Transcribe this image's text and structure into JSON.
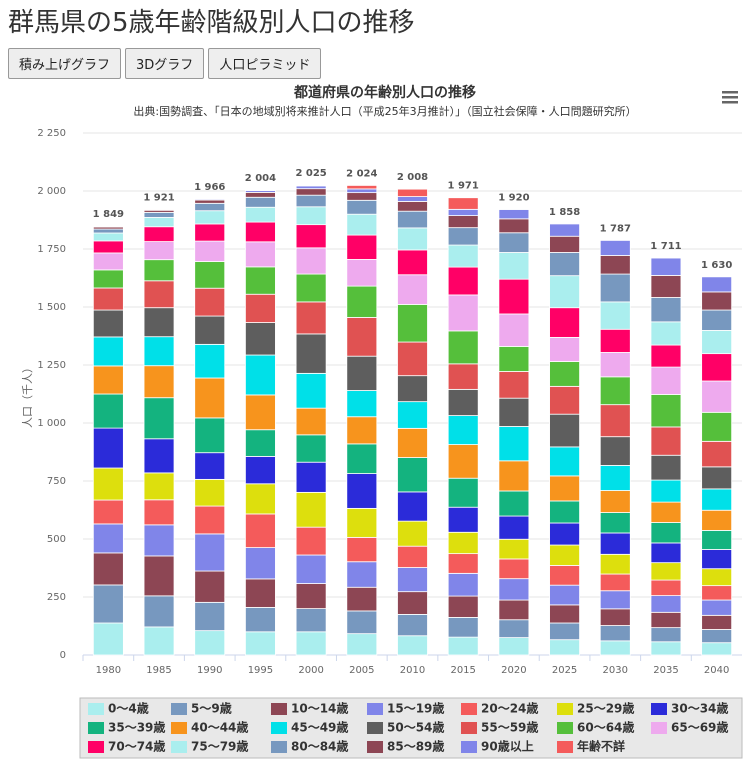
{
  "page_title": "群馬県の5歳年齢階級別人口の推移",
  "buttons": [
    "積み上げグラフ",
    "3Dグラフ",
    "人口ピラミッド"
  ],
  "chart_data": {
    "type": "stacked_bar",
    "title": "都道府県の年齢別人口の推移",
    "subtitle": "出典:国勢調査、「日本の地域別将来推計人口（平成25年3月推計）」（国立社会保障・人口問題研究所）",
    "y_label": "人口（千人）",
    "categories": [
      "1980",
      "1985",
      "1990",
      "1995",
      "2000",
      "2005",
      "2010",
      "2015",
      "2020",
      "2025",
      "2030",
      "2035",
      "2040"
    ],
    "ylim": [
      0,
      2250
    ],
    "yticks": [
      0,
      250,
      500,
      750,
      {
        "value": 1000,
        "label": "1 000"
      },
      {
        "value": 1250,
        "label": "1 250"
      },
      {
        "value": 1500,
        "label": "1 500"
      },
      {
        "value": 1750,
        "label": "1 750"
      },
      {
        "value": 2000,
        "label": "2 000"
      },
      {
        "value": 2250,
        "label": "2 250"
      }
    ],
    "totals": [
      {
        "value": 1849,
        "label": "1 849"
      },
      {
        "value": 1921,
        "label": "1 921"
      },
      {
        "value": 1966,
        "label": "1 966"
      },
      {
        "value": 2004,
        "label": "2 004"
      },
      {
        "value": 2025,
        "label": "2 025"
      },
      {
        "value": 2024,
        "label": "2 024"
      },
      {
        "value": 2008,
        "label": "2 008"
      },
      {
        "value": 1971,
        "label": "1 971"
      },
      {
        "value": 1920,
        "label": "1 920"
      },
      {
        "value": 1858,
        "label": "1 858"
      },
      {
        "value": 1787,
        "label": "1 787"
      },
      {
        "value": 1711,
        "label": "1 711"
      },
      {
        "value": 1630,
        "label": "1 630"
      }
    ],
    "series": [
      {
        "name": "0～4歳",
        "color": "#aaeeee",
        "values": [
          138,
          121,
          105,
          100,
          100,
          92,
          83,
          77,
          75,
          66,
          61,
          57,
          53
        ]
      },
      {
        "name": "5～9歳",
        "color": "#7798bf",
        "values": [
          164,
          134,
          122,
          105,
          100,
          98,
          92,
          85,
          77,
          72,
          66,
          61,
          57
        ]
      },
      {
        "name": "10～14歳",
        "color": "#8d4654",
        "values": [
          138,
          172,
          135,
          123,
          108,
          102,
          98,
          92,
          85,
          78,
          72,
          66,
          61
        ]
      },
      {
        "name": "15～19歳",
        "color": "#8085e9",
        "values": [
          125,
          134,
          160,
          135,
          123,
          110,
          104,
          98,
          92,
          85,
          78,
          72,
          66
        ]
      },
      {
        "name": "20～24歳",
        "color": "#f45b5b",
        "values": [
          103,
          108,
          120,
          145,
          120,
          105,
          92,
          85,
          85,
          85,
          72,
          67,
          62
        ]
      },
      {
        "name": "25～29歳",
        "color": "#dddf0d",
        "values": [
          138,
          116,
          115,
          130,
          150,
          125,
          108,
          92,
          85,
          88,
          85,
          75,
          73
        ]
      },
      {
        "name": "30～34歳",
        "color": "#2b2bd9",
        "values": [
          172,
          147,
          115,
          118,
          130,
          150,
          126,
          108,
          100,
          95,
          92,
          85,
          83
        ]
      },
      {
        "name": "35～39歳",
        "color": "#14b37f",
        "values": [
          147,
          177,
          150,
          115,
          118,
          128,
          148,
          125,
          108,
          95,
          88,
          88,
          82
        ]
      },
      {
        "name": "40～44歳",
        "color": "#f7941d",
        "values": [
          121,
          138,
          172,
          150,
          115,
          117,
          126,
          145,
          130,
          108,
          95,
          88,
          87
        ]
      },
      {
        "name": "45～49歳",
        "color": "#00e0e8",
        "values": [
          125,
          125,
          145,
          172,
          150,
          113,
          115,
          125,
          148,
          125,
          108,
          95,
          92
        ]
      },
      {
        "name": "50～54歳",
        "color": "#5e5e5e",
        "values": [
          116,
          125,
          122,
          140,
          170,
          148,
          112,
          113,
          122,
          141,
          124,
          107,
          95
        ]
      },
      {
        "name": "55～59歳",
        "color": "#e05252",
        "values": [
          95,
          116,
          120,
          122,
          138,
          167,
          145,
          110,
          115,
          120,
          138,
          122,
          110
        ]
      },
      {
        "name": "60～64歳",
        "color": "#55bf3b",
        "values": [
          78,
          91,
          115,
          118,
          120,
          135,
          162,
          142,
          108,
          107,
          120,
          140,
          125
        ]
      },
      {
        "name": "65～69歳",
        "color": "#eeaaee",
        "values": [
          73,
          78,
          88,
          108,
          113,
          115,
          128,
          155,
          140,
          104,
          105,
          118,
          135
        ]
      },
      {
        "name": "70～74歳",
        "color": "#ff0066",
        "values": [
          52,
          64,
          74,
          85,
          100,
          105,
          107,
          120,
          150,
          128,
          100,
          95,
          118
        ]
      },
      {
        "name": "75～79歳",
        "color": "#aaeeee",
        "values": [
          34,
          40,
          57,
          64,
          77,
          90,
          95,
          95,
          115,
          138,
          118,
          100,
          100
        ]
      },
      {
        "name": "80～84歳",
        "color": "#7798bf",
        "values": [
          17,
          22,
          32,
          43,
          50,
          60,
          72,
          75,
          85,
          100,
          120,
          105,
          88
        ]
      },
      {
        "name": "85～89歳",
        "color": "#8d4654",
        "values": [
          9,
          9,
          14,
          21,
          28,
          33,
          42,
          52,
          60,
          70,
          80,
          95,
          78
        ]
      },
      {
        "name": "90歳以上",
        "color": "#8085e9",
        "values": [
          3,
          3,
          4,
          8,
          12,
          16,
          21,
          27,
          40,
          53,
          65,
          75,
          65
        ]
      },
      {
        "name": "年齢不詳",
        "color": "#f45b5b",
        "values": [
          1,
          1,
          1,
          2,
          3,
          15,
          32,
          50,
          0,
          0,
          0,
          0,
          0
        ]
      }
    ],
    "legend": "bottom"
  }
}
